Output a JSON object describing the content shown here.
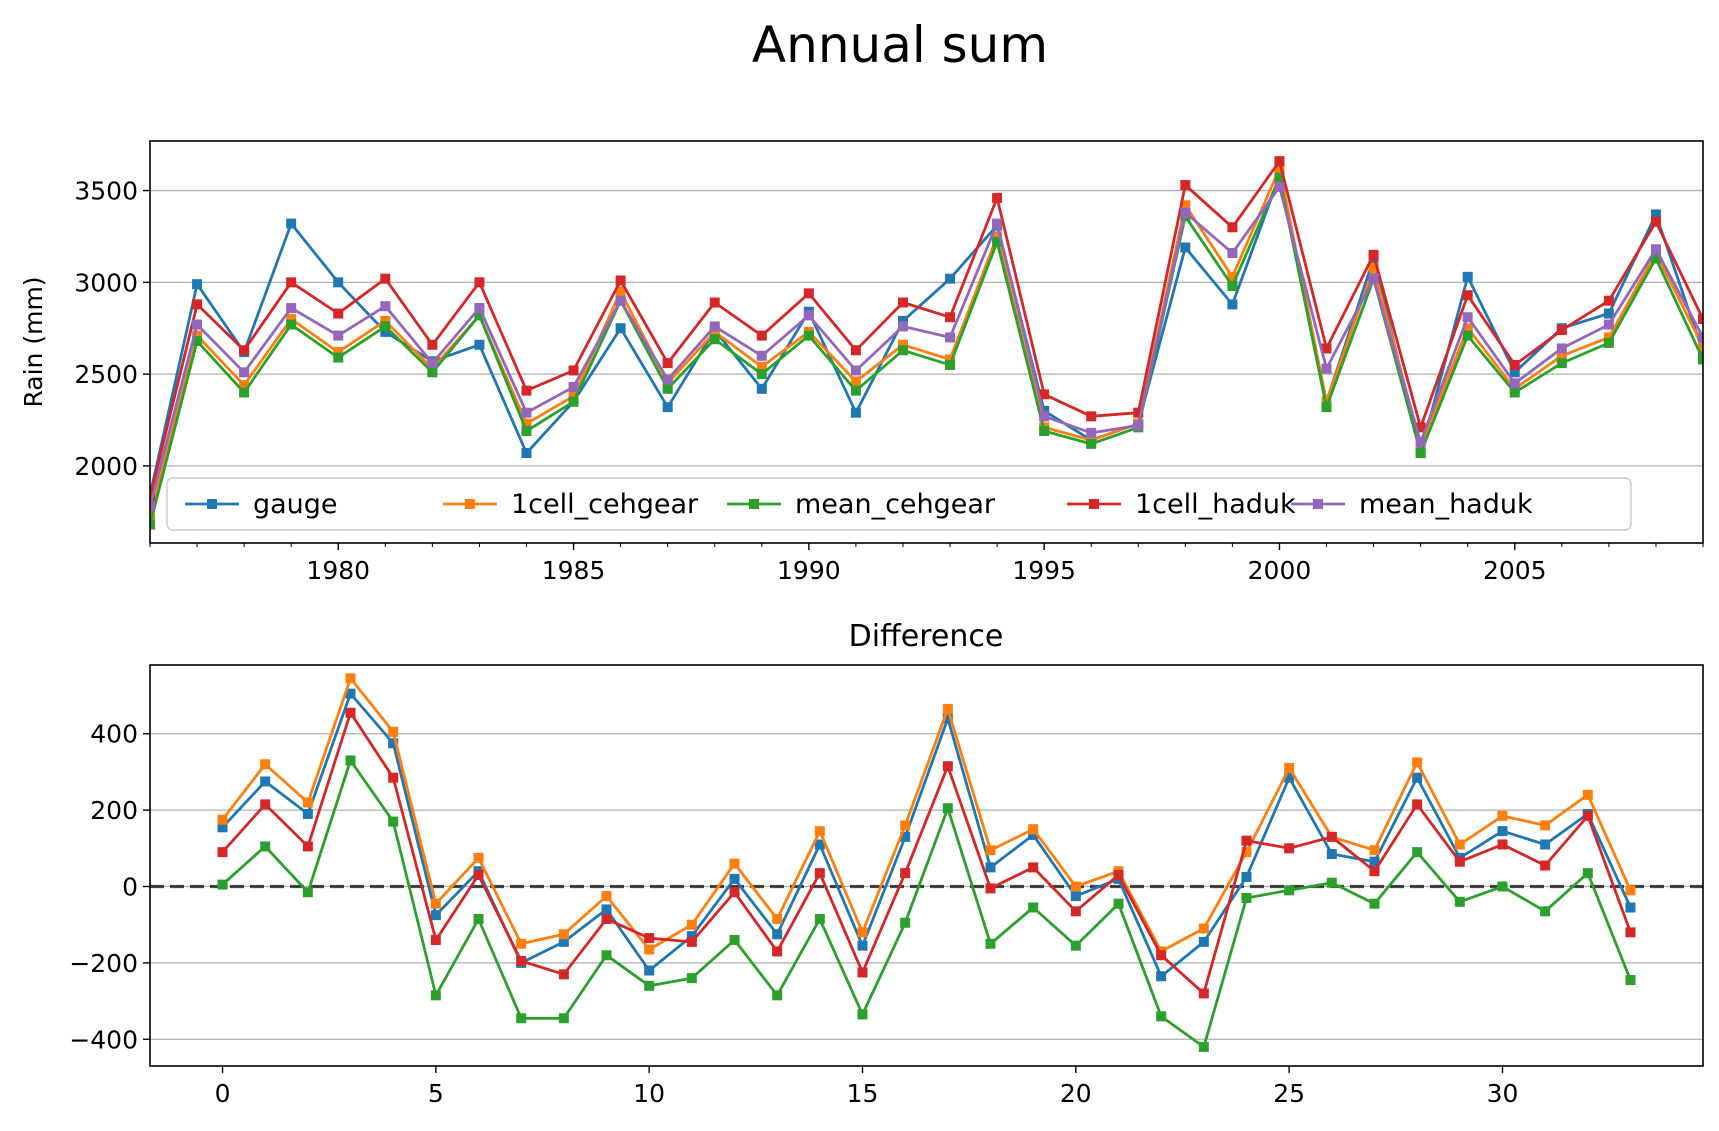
{
  "figure_title": "Annual sum",
  "chart_data": [
    {
      "type": "line",
      "title": "",
      "xlabel": "",
      "ylabel": "Rain (mm)",
      "xlim": [
        1976,
        2009
      ],
      "ylim": [
        1580,
        3770
      ],
      "xticks": [
        1980,
        1985,
        1990,
        1995,
        2000,
        2005
      ],
      "yticks": [
        2000,
        2500,
        3000,
        3500
      ],
      "grid": "y",
      "legend": {
        "placement": "lower-center",
        "columns": 5
      },
      "x": [
        1976,
        1977,
        1978,
        1979,
        1980,
        1981,
        1982,
        1983,
        1984,
        1985,
        1986,
        1987,
        1988,
        1989,
        1990,
        1991,
        1992,
        1993,
        1994,
        1995,
        1996,
        1997,
        1998,
        1999,
        2000,
        2001,
        2002,
        2003,
        2004,
        2005,
        2006,
        2007,
        2008,
        2009
      ],
      "series": [
        {
          "name": "gauge",
          "color": "#1f77b4",
          "values": [
            1840,
            2990,
            2620,
            3320,
            3000,
            2730,
            2570,
            2660,
            2070,
            2350,
            2750,
            2320,
            2740,
            2420,
            2840,
            2290,
            2790,
            3020,
            3310,
            2300,
            2140,
            2230,
            3190,
            2880,
            3580,
            2350,
            3130,
            2070,
            3030,
            2510,
            2750,
            2830,
            3370,
            2620
          ]
        },
        {
          "name": "1cell_cehgear",
          "color": "#ff7f0e",
          "values": [
            1720,
            2710,
            2440,
            2800,
            2620,
            2790,
            2530,
            2820,
            2230,
            2380,
            2950,
            2450,
            2730,
            2540,
            2730,
            2460,
            2660,
            2580,
            3250,
            2210,
            2140,
            2230,
            3420,
            3030,
            3620,
            2350,
            3080,
            2110,
            2750,
            2420,
            2600,
            2700,
            3160,
            2650
          ]
        },
        {
          "name": "mean_cehgear",
          "color": "#2ca02c",
          "values": [
            1680,
            2680,
            2400,
            2770,
            2590,
            2760,
            2510,
            2820,
            2190,
            2350,
            2900,
            2420,
            2690,
            2500,
            2710,
            2410,
            2630,
            2550,
            3220,
            2190,
            2120,
            2210,
            3360,
            2980,
            3570,
            2320,
            3020,
            2070,
            2710,
            2400,
            2560,
            2670,
            3130,
            2580
          ]
        },
        {
          "name": "1cell_haduk",
          "color": "#d62728",
          "values": [
            1830,
            2880,
            2630,
            3000,
            2830,
            3020,
            2660,
            3000,
            2410,
            2520,
            3010,
            2560,
            2890,
            2710,
            2940,
            2630,
            2890,
            2810,
            3460,
            2390,
            2270,
            2290,
            3530,
            3300,
            3660,
            2640,
            3150,
            2210,
            2930,
            2550,
            2740,
            2900,
            3330,
            2800
          ]
        },
        {
          "name": "mean_haduk",
          "color": "#9467bd",
          "values": [
            1780,
            2770,
            2510,
            2860,
            2710,
            2870,
            2560,
            2860,
            2290,
            2430,
            2900,
            2470,
            2760,
            2600,
            2820,
            2520,
            2760,
            2700,
            3320,
            2270,
            2180,
            2220,
            3380,
            3160,
            3520,
            2530,
            3020,
            2130,
            2810,
            2450,
            2640,
            2770,
            3180,
            2700
          ]
        }
      ]
    },
    {
      "type": "line",
      "title": "Difference",
      "xlabel": "",
      "ylabel": "",
      "xlim": [
        -1.7,
        34.7
      ],
      "ylim": [
        -470,
        580
      ],
      "xticks": [
        0,
        5,
        10,
        15,
        20,
        25,
        30
      ],
      "yticks": [
        -400,
        -200,
        0,
        200,
        400
      ],
      "grid": "y",
      "reference_line": {
        "y": 0,
        "style": "dashed"
      },
      "x": [
        0,
        1,
        2,
        3,
        4,
        5,
        6,
        7,
        8,
        9,
        10,
        11,
        12,
        13,
        14,
        15,
        16,
        17,
        18,
        19,
        20,
        21,
        22,
        23,
        24,
        25,
        26,
        27,
        28,
        29,
        30,
        31,
        32,
        33
      ],
      "series": [
        {
          "color": "#1f77b4",
          "values": [
            155,
            275,
            190,
            505,
            375,
            -75,
            40,
            -200,
            -145,
            -60,
            -220,
            -130,
            20,
            -125,
            110,
            -155,
            130,
            440,
            50,
            135,
            -25,
            20,
            -235,
            -145,
            25,
            285,
            85,
            65,
            285,
            75,
            145,
            110,
            190,
            -55
          ]
        },
        {
          "color": "#ff7f0e",
          "values": [
            175,
            320,
            220,
            545,
            405,
            -45,
            75,
            -150,
            -125,
            -25,
            -165,
            -100,
            60,
            -85,
            145,
            -120,
            160,
            465,
            95,
            150,
            0,
            40,
            -170,
            -110,
            90,
            310,
            130,
            95,
            325,
            110,
            185,
            160,
            240,
            -10
          ]
        },
        {
          "color": "#2ca02c",
          "values": [
            5,
            105,
            -15,
            330,
            170,
            -285,
            -85,
            -345,
            -345,
            -180,
            -260,
            -240,
            -140,
            -285,
            -85,
            -335,
            -95,
            205,
            -150,
            -55,
            -155,
            -45,
            -340,
            -420,
            -30,
            -10,
            10,
            -45,
            90,
            -40,
            0,
            -65,
            35,
            -245
          ]
        },
        {
          "color": "#d62728",
          "values": [
            90,
            215,
            105,
            455,
            285,
            -140,
            30,
            -195,
            -230,
            -85,
            -135,
            -145,
            -15,
            -170,
            35,
            -225,
            35,
            315,
            -5,
            50,
            -65,
            30,
            -180,
            -280,
            120,
            100,
            130,
            40,
            215,
            65,
            110,
            55,
            185,
            -120
          ]
        }
      ]
    }
  ]
}
